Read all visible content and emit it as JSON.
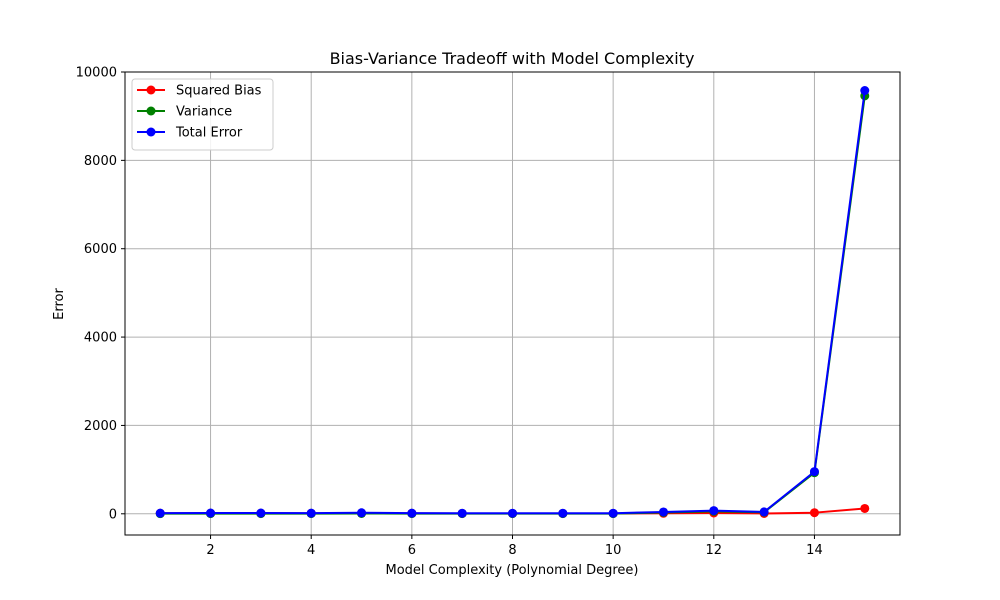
{
  "chart_data": {
    "type": "line",
    "title": "Bias-Variance Tradeoff with Model Complexity",
    "xlabel": "Model Complexity (Polynomial Degree)",
    "ylabel": "Error",
    "x": [
      1,
      2,
      3,
      4,
      5,
      6,
      7,
      8,
      9,
      10,
      11,
      12,
      13,
      14,
      15
    ],
    "xlim": [
      0.3,
      15.7
    ],
    "ylim": [
      -480,
      10000
    ],
    "xticks": [
      2,
      4,
      6,
      8,
      10,
      12,
      14
    ],
    "yticks": [
      0,
      2000,
      4000,
      6000,
      8000,
      10000
    ],
    "grid": true,
    "legend_position": "top-left",
    "series": [
      {
        "name": "Squared Bias",
        "color": "#ff0000",
        "values": [
          12,
          12,
          12,
          10,
          15,
          10,
          8,
          8,
          8,
          8,
          12,
          18,
          8,
          25,
          120
        ]
      },
      {
        "name": "Variance",
        "color": "#008000",
        "values": [
          3,
          5,
          5,
          5,
          8,
          5,
          5,
          5,
          5,
          5,
          30,
          55,
          35,
          930,
          9460
        ]
      },
      {
        "name": "Total Error",
        "color": "#0000ff",
        "values": [
          15,
          17,
          17,
          15,
          23,
          15,
          13,
          13,
          13,
          13,
          42,
          73,
          43,
          955,
          9580
        ]
      }
    ]
  }
}
